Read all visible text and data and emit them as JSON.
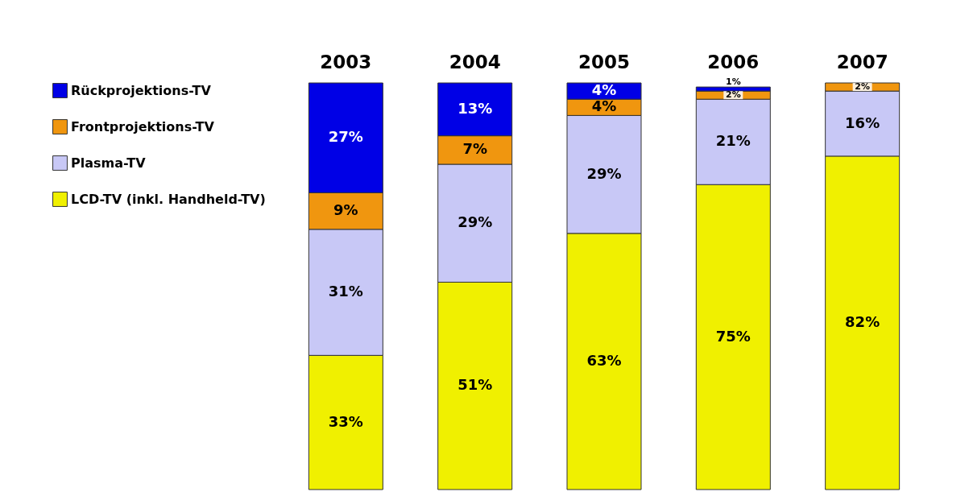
{
  "chart_data": {
    "type": "bar",
    "stacked": true,
    "legend": "left",
    "categories": [
      "2003",
      "2004",
      "2005",
      "2006",
      "2007"
    ],
    "series": [
      {
        "name": "LCD-TV (inkl. Handheld-TV)",
        "color": "#f0f000",
        "values": [
          33,
          51,
          63,
          75,
          82
        ],
        "value_labels": [
          "33%",
          "51%",
          "63%",
          "75%",
          "82%"
        ]
      },
      {
        "name": "Plasma-TV",
        "color": "#c8c8f6",
        "values": [
          31,
          29,
          29,
          21,
          16
        ],
        "value_labels": [
          "31%",
          "29%",
          "29%",
          "21%",
          "16%"
        ]
      },
      {
        "name": "Frontprojektions-TV",
        "color": "#f0960f",
        "values": [
          9,
          7,
          4,
          2,
          2
        ],
        "value_labels": [
          "9%",
          "7%",
          "4%",
          "2%",
          "2%"
        ]
      },
      {
        "name": "Rückprojektions-TV",
        "color": "#0000e6",
        "values": [
          27,
          13,
          4,
          1,
          null
        ],
        "value_labels": [
          "27%",
          "13%",
          "4%",
          "1%",
          null
        ]
      }
    ]
  }
}
